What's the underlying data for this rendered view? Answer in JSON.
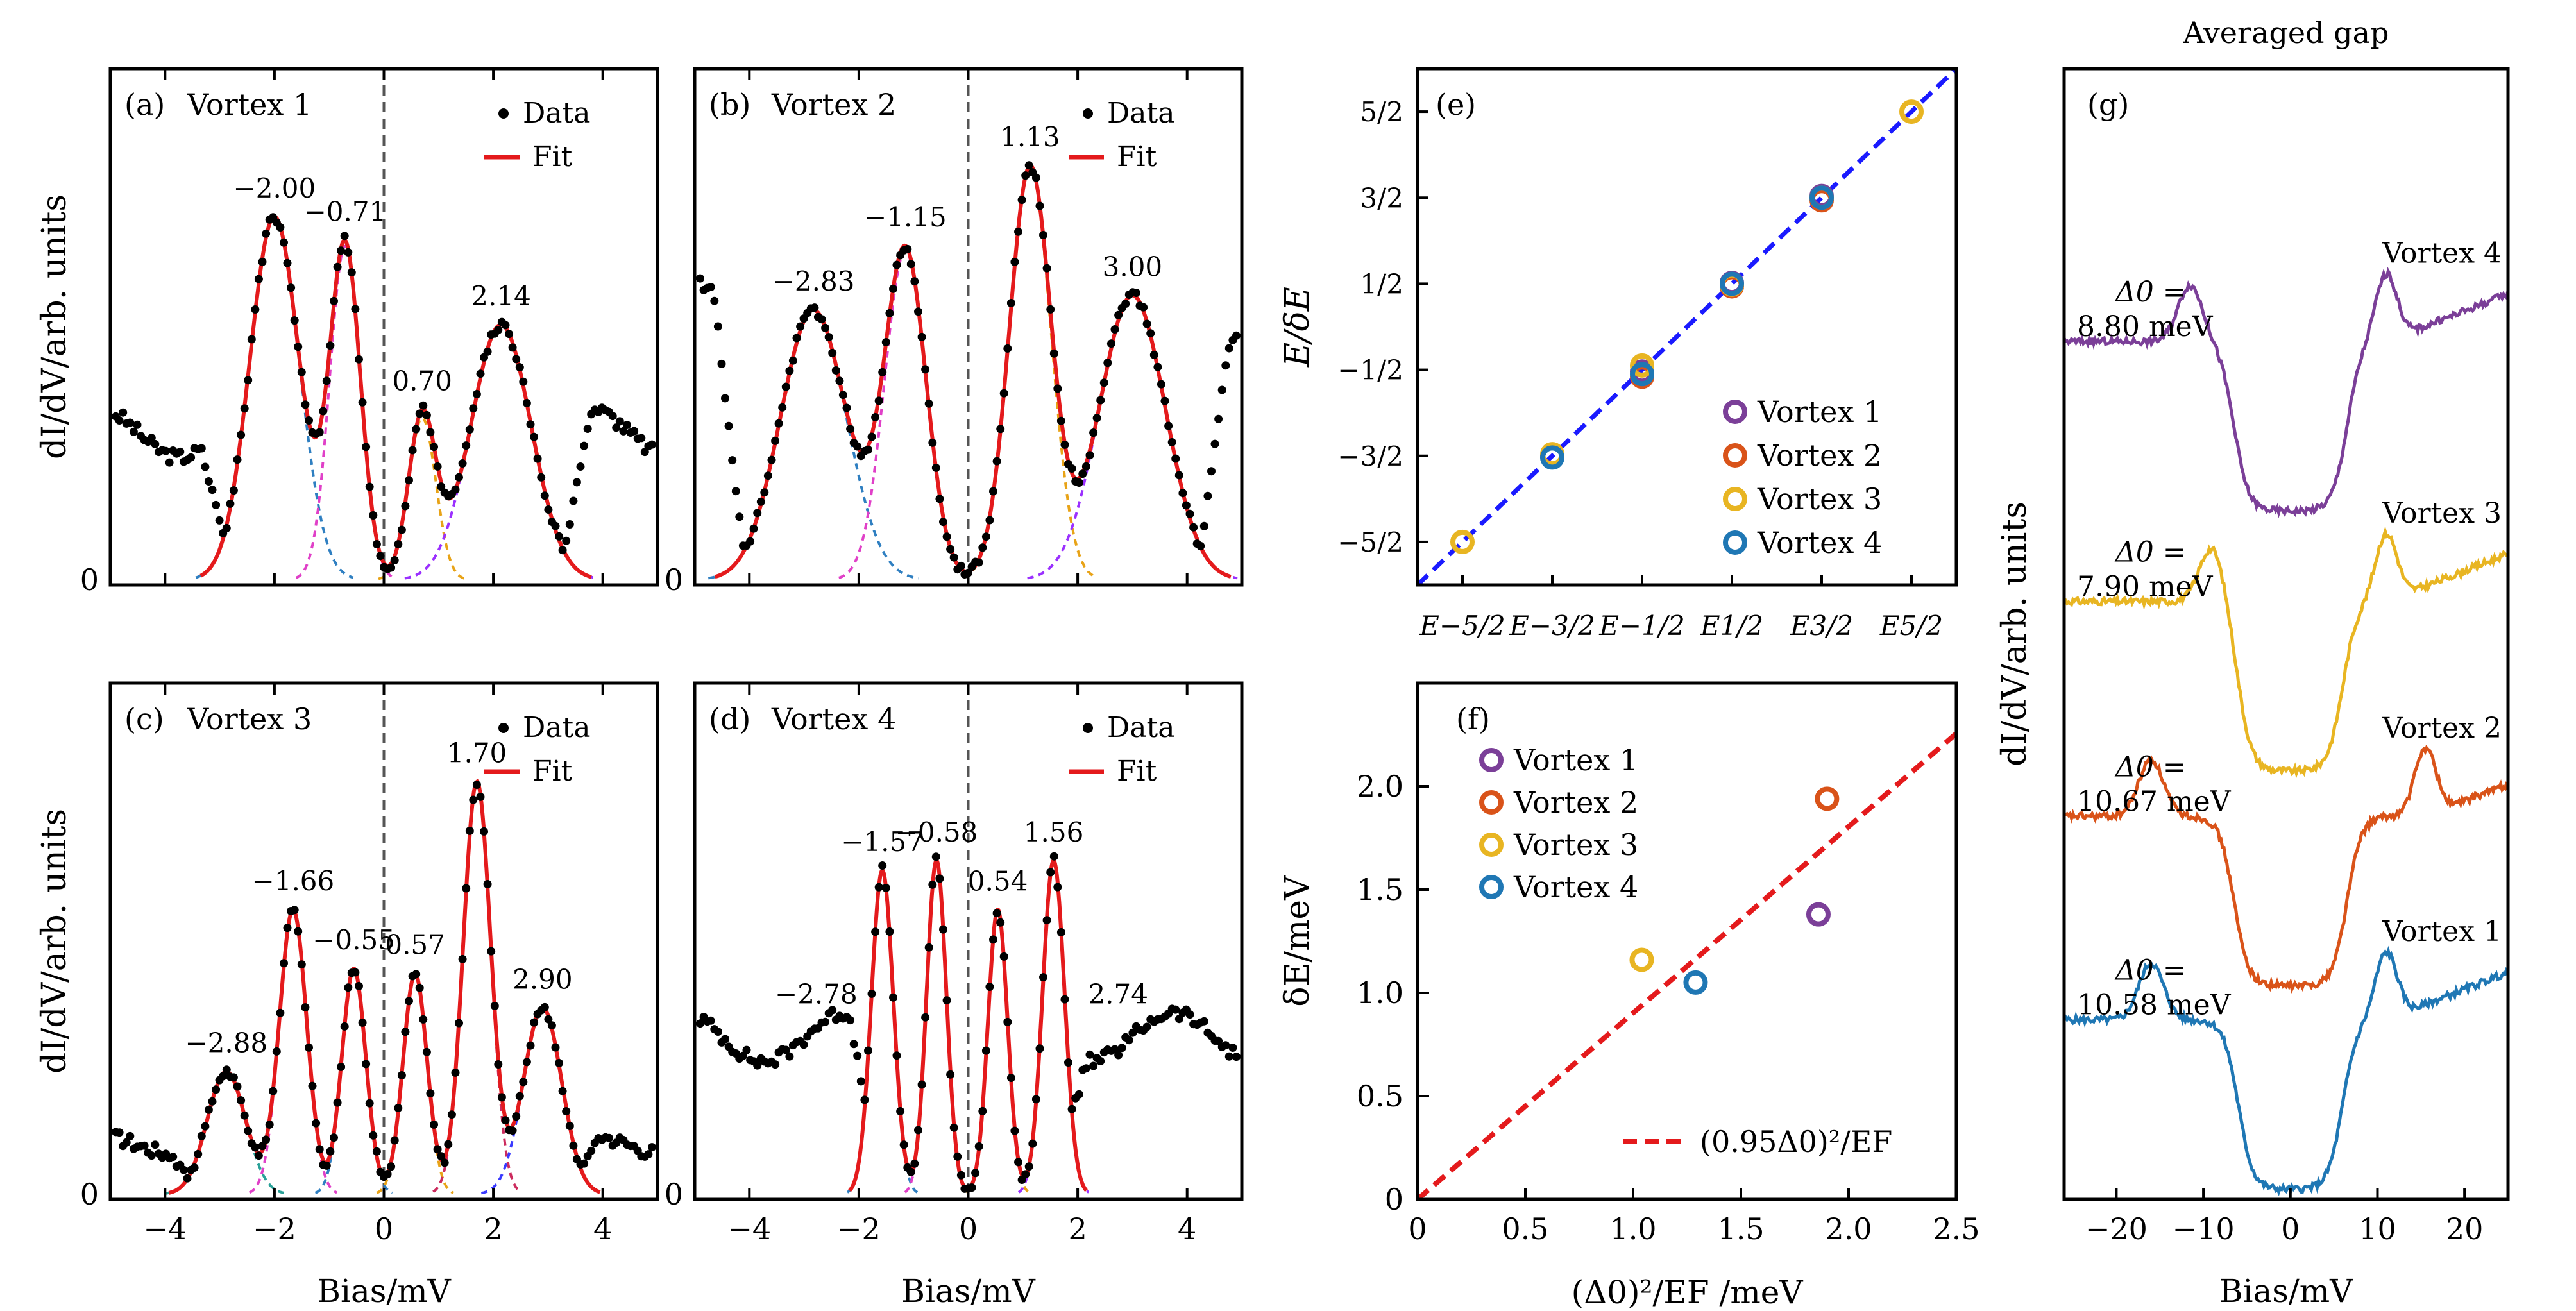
{
  "figure": {
    "shared": {
      "bias_label": "Bias/mV",
      "didv_label": "dI/dV/arb. units",
      "data_legend": "Data",
      "fit_legend": "Fit"
    }
  },
  "chart_data": [
    {
      "id": "a",
      "type": "line",
      "panel_label": "(a)",
      "title": "Vortex 1",
      "xlabel": "Bias/mV",
      "ylabel": "dI/dV/arb. units",
      "xlim": [
        -5,
        5
      ],
      "ylim": [
        0,
        1.0
      ],
      "xticks": [
        -4,
        -2,
        0,
        2,
        4
      ],
      "yticks": [
        0
      ],
      "legend": [
        "Data",
        "Fit"
      ],
      "legend_position": "top-right",
      "peaks": [
        {
          "x": -2.0,
          "label": "−2.00",
          "label_color": "#1f3fff"
        },
        {
          "x": -0.71,
          "label": "−0.71",
          "label_color": "#1f3fff"
        },
        {
          "x": 0.7,
          "label": "0.70",
          "label_color": "#1f3fff"
        },
        {
          "x": 2.14,
          "label": "2.14",
          "label_color": "#1f3fff"
        }
      ],
      "components": [
        {
          "center": -2.0,
          "amp": 0.74,
          "width": 0.45,
          "color": "#2f7fc1"
        },
        {
          "center": -0.71,
          "amp": 0.68,
          "width": 0.28,
          "color": "#e040c8"
        },
        {
          "center": 0.7,
          "amp": 0.33,
          "width": 0.25,
          "color": "#e8a317"
        },
        {
          "center": 2.14,
          "amp": 0.52,
          "width": 0.55,
          "color": "#9b30ff"
        }
      ],
      "data_points": {
        "x_range": [
          -4.9,
          4.9
        ],
        "baseline": 0.3,
        "edge_amplitude": 0.05
      }
    },
    {
      "id": "b",
      "type": "line",
      "panel_label": "(b)",
      "title": "Vortex 2",
      "xlabel": "Bias/mV",
      "ylabel": "dI/dV/arb. units",
      "xlim": [
        -5,
        5
      ],
      "ylim": [
        0,
        1.0
      ],
      "xticks": [
        -4,
        -2,
        0,
        2,
        4
      ],
      "yticks": [
        0
      ],
      "legend": [
        "Data",
        "Fit"
      ],
      "legend_position": "top-right",
      "peaks": [
        {
          "x": -2.83,
          "label": "−2.83",
          "label_color": "#1f3fff"
        },
        {
          "x": -1.15,
          "label": "−1.15",
          "label_color": "#1f3fff"
        },
        {
          "x": 1.13,
          "label": "1.13",
          "label_color": "#1f3fff"
        },
        {
          "x": 3.0,
          "label": "3.00",
          "label_color": "#1f3fff"
        }
      ],
      "components": [
        {
          "center": -2.83,
          "amp": 0.55,
          "width": 0.6,
          "color": "#2f7fc1"
        },
        {
          "center": -1.15,
          "amp": 0.67,
          "width": 0.38,
          "color": "#e040c8"
        },
        {
          "center": 1.13,
          "amp": 0.84,
          "width": 0.38,
          "color": "#e8a317"
        },
        {
          "center": 3.0,
          "amp": 0.58,
          "width": 0.6,
          "color": "#9b30ff"
        }
      ],
      "data_points": {
        "x_range": [
          -4.9,
          4.9
        ],
        "baseline": 0.55,
        "edge_amplitude": 0.08
      }
    },
    {
      "id": "c",
      "type": "line",
      "panel_label": "(c)",
      "title": "Vortex 3",
      "xlabel": "Bias/mV",
      "ylabel": "dI/dV/arb. units",
      "xlim": [
        -5,
        5
      ],
      "ylim": [
        0,
        1.0
      ],
      "xticks": [
        -4,
        -2,
        0,
        2,
        4
      ],
      "yticks": [
        0
      ],
      "legend": [
        "Data",
        "Fit"
      ],
      "legend_position": "top-right",
      "peaks": [
        {
          "x": -2.88,
          "label": "−2.88",
          "label_color": "#1f3fff"
        },
        {
          "x": -1.66,
          "label": "−1.66",
          "label_color": "#1f3fff"
        },
        {
          "x": -0.55,
          "label": "−0.55",
          "label_color": "#1f3fff"
        },
        {
          "x": 0.57,
          "label": "0.57",
          "label_color": "#1f3fff"
        },
        {
          "x": 1.7,
          "label": "1.70",
          "label_color": "#1f3fff"
        },
        {
          "x": 2.9,
          "label": "2.90",
          "label_color": "#1f3fff"
        }
      ],
      "components": [
        {
          "center": -2.88,
          "amp": 0.25,
          "width": 0.35,
          "color": "#2aa198"
        },
        {
          "center": -1.66,
          "amp": 0.58,
          "width": 0.25,
          "color": "#e040c8"
        },
        {
          "center": -0.55,
          "amp": 0.46,
          "width": 0.22,
          "color": "#2f7fc1"
        },
        {
          "center": 0.57,
          "amp": 0.45,
          "width": 0.22,
          "color": "#e8a317"
        },
        {
          "center": 1.7,
          "amp": 0.84,
          "width": 0.25,
          "color": "#cc2b5e"
        },
        {
          "center": 2.9,
          "amp": 0.38,
          "width": 0.35,
          "color": "#3a3aff"
        }
      ],
      "data_points": {
        "x_range": [
          -4.9,
          4.9
        ],
        "baseline": 0.1,
        "edge_amplitude": 0.02
      }
    },
    {
      "id": "d",
      "type": "line",
      "panel_label": "(d)",
      "title": "Vortex 4",
      "xlabel": "Bias/mV",
      "ylabel": "dI/dV/arb. units",
      "xlim": [
        -5,
        5
      ],
      "ylim": [
        0,
        1.0
      ],
      "xticks": [
        -4,
        -2,
        0,
        2,
        4
      ],
      "yticks": [
        0
      ],
      "legend": [
        "Data",
        "Fit"
      ],
      "legend_position": "top-right",
      "peaks": [
        {
          "x": -2.78,
          "label": "−2.78",
          "label_color": "#000000"
        },
        {
          "x": -1.57,
          "label": "−1.57",
          "label_color": "#1f3fff"
        },
        {
          "x": -0.58,
          "label": "−0.58",
          "label_color": "#1f3fff"
        },
        {
          "x": 0.54,
          "label": "0.54",
          "label_color": "#1f3fff"
        },
        {
          "x": 1.56,
          "label": "1.56",
          "label_color": "#1f3fff"
        },
        {
          "x": 2.74,
          "label": "2.74",
          "label_color": "#000000"
        }
      ],
      "components": [
        {
          "center": -1.57,
          "amp": 0.66,
          "width": 0.2,
          "color": "#2f7fc1"
        },
        {
          "center": -0.58,
          "amp": 0.68,
          "width": 0.18,
          "color": "#e040c8"
        },
        {
          "center": 0.54,
          "amp": 0.58,
          "width": 0.18,
          "color": "#e8a317"
        },
        {
          "center": 1.56,
          "amp": 0.68,
          "width": 0.2,
          "color": "#9b30ff"
        }
      ],
      "data_points": {
        "x_range": [
          -4.9,
          4.9
        ],
        "baseline": 0.32,
        "edge_amplitude": 0.05
      }
    },
    {
      "id": "e",
      "type": "scatter",
      "panel_label": "(e)",
      "ylabel": "E/δE",
      "x_tick_labels": [
        "E−5/2",
        "E−3/2",
        "E−1/2",
        "E1/2",
        "E3/2",
        "E5/2"
      ],
      "y_tick_labels": [
        "−5/2",
        "−3/2",
        "−1/2",
        "1/2",
        "3/2",
        "5/2"
      ],
      "xlim": [
        -3,
        3
      ],
      "ylim": [
        -3,
        3
      ],
      "legend_position": "lower-right",
      "series": [
        {
          "name": "Vortex 1",
          "color": "#7b3f98",
          "points": [
            [
              -1.5,
              -1.5
            ],
            [
              -0.5,
              -0.52
            ],
            [
              0.5,
              0.51
            ],
            [
              1.5,
              1.52
            ]
          ]
        },
        {
          "name": "Vortex 2",
          "color": "#d95319",
          "points": [
            [
              -0.5,
              -0.58
            ],
            [
              0.5,
              0.47
            ],
            [
              1.5,
              1.47
            ]
          ]
        },
        {
          "name": "Vortex 3",
          "color": "#e8b522",
          "points": [
            [
              -2.5,
              -2.5
            ],
            [
              -1.5,
              -1.48
            ],
            [
              -0.5,
              -0.45
            ],
            [
              0.5,
              0.49
            ],
            [
              1.5,
              1.5
            ],
            [
              2.5,
              2.5
            ]
          ]
        },
        {
          "name": "Vortex 4",
          "color": "#1f77b4",
          "points": [
            [
              -1.5,
              -1.52
            ],
            [
              -0.5,
              -0.55
            ],
            [
              0.5,
              0.5
            ],
            [
              1.5,
              1.5
            ]
          ]
        }
      ]
    },
    {
      "id": "f",
      "type": "scatter",
      "panel_label": "(f)",
      "xlabel": "(Δ0)²/EF /meV",
      "ylabel": "δE/meV",
      "xlim": [
        0,
        2.5
      ],
      "ylim": [
        0,
        2.5
      ],
      "xticks": [
        0,
        0.5,
        1.0,
        1.5,
        2.0,
        2.5
      ],
      "yticks": [
        0,
        0.5,
        1.0,
        1.5,
        2.0
      ],
      "xtick_labels": [
        "0",
        "0.5",
        "1.0",
        "1.5",
        "2.0",
        "2.5"
      ],
      "ytick_labels": [
        "0",
        "0.5",
        "1.0",
        "1.5",
        "2.0"
      ],
      "legend_position": "top-left",
      "series": [
        {
          "name": "Vortex 1",
          "color": "#7b3f98",
          "points": [
            [
              1.86,
              1.38
            ]
          ]
        },
        {
          "name": "Vortex 2",
          "color": "#d95319",
          "points": [
            [
              1.9,
              1.94
            ]
          ]
        },
        {
          "name": "Vortex 3",
          "color": "#e8b522",
          "points": [
            [
              1.04,
              1.16
            ]
          ]
        },
        {
          "name": "Vortex 4",
          "color": "#1f77b4",
          "points": [
            [
              1.29,
              1.05
            ]
          ]
        }
      ],
      "fit_line": {
        "name": "(0.95Δ0)²/EF",
        "color": "#e41a1c",
        "slope": 0.9025
      }
    },
    {
      "id": "g",
      "type": "line",
      "panel_label": "(g)",
      "title": "Averaged gap",
      "xlabel": "Bias/mV",
      "ylabel": "dI/dV/arb. units",
      "xlim": [
        -26,
        25
      ],
      "ylim": [
        0,
        1.0
      ],
      "xticks": [
        -20,
        -10,
        0,
        10,
        20
      ],
      "series": [
        {
          "name": "Vortex 1",
          "color": "#1f77b4",
          "gap_label": "Δ0 =",
          "gap_value": "10.58 meV",
          "offset": 0.0,
          "half_gap": 6.0,
          "coherence_neg": -16.0,
          "coherence_pos": 11.0
        },
        {
          "name": "Vortex 2",
          "color": "#d95319",
          "gap_label": "Δ0 =",
          "gap_value": "10.67 meV",
          "offset": 0.18,
          "half_gap": 6.5,
          "coherence_neg": -16.0,
          "coherence_pos": 15.5
        },
        {
          "name": "Vortex 3",
          "color": "#e8b522",
          "gap_label": "Δ0 =",
          "gap_value": "7.90 meV",
          "offset": 0.37,
          "half_gap": 6.0,
          "coherence_neg": -9.0,
          "coherence_pos": 11.0
        },
        {
          "name": "Vortex 4",
          "color": "#7b3f98",
          "gap_label": "Δ0 =",
          "gap_value": "8.80 meV",
          "offset": 0.6,
          "half_gap": 6.5,
          "coherence_neg": -11.5,
          "coherence_pos": 11.0
        }
      ]
    }
  ]
}
